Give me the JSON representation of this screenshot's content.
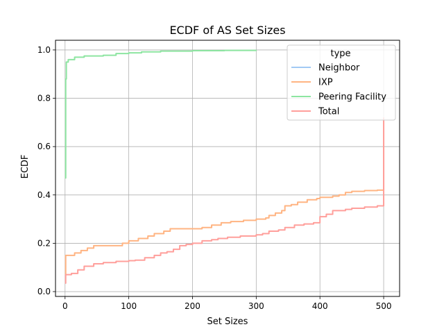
{
  "chart_data": {
    "type": "line",
    "title": "ECDF of AS Set Sizes",
    "xlabel": "Set Sizes",
    "ylabel": "ECDF",
    "xlim": [
      -15,
      525
    ],
    "ylim": [
      -0.02,
      1.04
    ],
    "xticks": [
      0,
      100,
      200,
      300,
      400,
      500
    ],
    "yticks": [
      0.0,
      0.2,
      0.4,
      0.6,
      0.8,
      1.0
    ],
    "xtick_labels": [
      "0",
      "100",
      "200",
      "300",
      "400",
      "500"
    ],
    "ytick_labels": [
      "0.0",
      "0.2",
      "0.4",
      "0.6",
      "0.8",
      "1.0"
    ],
    "grid": true,
    "legend": {
      "title": "type",
      "position": "top-right"
    },
    "series": [
      {
        "name": "Neighbor",
        "color": "#a1c9f4",
        "points": []
      },
      {
        "name": "IXP",
        "color": "#ffb482",
        "points": [
          [
            0,
            0.07
          ],
          [
            1,
            0.15
          ],
          [
            10,
            0.15
          ],
          [
            15,
            0.16
          ],
          [
            25,
            0.17
          ],
          [
            35,
            0.18
          ],
          [
            45,
            0.19
          ],
          [
            60,
            0.19
          ],
          [
            80,
            0.19
          ],
          [
            90,
            0.2
          ],
          [
            100,
            0.21
          ],
          [
            115,
            0.22
          ],
          [
            130,
            0.23
          ],
          [
            140,
            0.24
          ],
          [
            155,
            0.25
          ],
          [
            165,
            0.26
          ],
          [
            180,
            0.26
          ],
          [
            200,
            0.26
          ],
          [
            215,
            0.265
          ],
          [
            230,
            0.275
          ],
          [
            245,
            0.285
          ],
          [
            260,
            0.29
          ],
          [
            280,
            0.295
          ],
          [
            300,
            0.3
          ],
          [
            315,
            0.305
          ],
          [
            320,
            0.315
          ],
          [
            330,
            0.325
          ],
          [
            340,
            0.335
          ],
          [
            345,
            0.355
          ],
          [
            355,
            0.36
          ],
          [
            365,
            0.37
          ],
          [
            380,
            0.38
          ],
          [
            395,
            0.385
          ],
          [
            400,
            0.39
          ],
          [
            420,
            0.395
          ],
          [
            430,
            0.4
          ],
          [
            440,
            0.41
          ],
          [
            450,
            0.415
          ],
          [
            470,
            0.418
          ],
          [
            490,
            0.42
          ],
          [
            500,
            0.72
          ]
        ]
      },
      {
        "name": "Peering Facility",
        "color": "#8de5a1",
        "points": [
          [
            0,
            0.47
          ],
          [
            1,
            0.88
          ],
          [
            2,
            0.95
          ],
          [
            5,
            0.96
          ],
          [
            15,
            0.97
          ],
          [
            30,
            0.975
          ],
          [
            60,
            0.978
          ],
          [
            80,
            0.985
          ],
          [
            100,
            0.988
          ],
          [
            120,
            0.992
          ],
          [
            150,
            0.995
          ],
          [
            200,
            0.997
          ],
          [
            250,
            0.998
          ],
          [
            300,
            0.999
          ]
        ]
      },
      {
        "name": "Total",
        "color": "#ff9f9b",
        "points": [
          [
            0,
            0.035
          ],
          [
            1,
            0.07
          ],
          [
            10,
            0.075
          ],
          [
            20,
            0.09
          ],
          [
            30,
            0.105
          ],
          [
            45,
            0.115
          ],
          [
            60,
            0.12
          ],
          [
            80,
            0.125
          ],
          [
            100,
            0.128
          ],
          [
            110,
            0.13
          ],
          [
            125,
            0.14
          ],
          [
            140,
            0.15
          ],
          [
            150,
            0.16
          ],
          [
            160,
            0.165
          ],
          [
            170,
            0.175
          ],
          [
            180,
            0.19
          ],
          [
            190,
            0.195
          ],
          [
            200,
            0.2
          ],
          [
            215,
            0.21
          ],
          [
            230,
            0.215
          ],
          [
            240,
            0.22
          ],
          [
            255,
            0.225
          ],
          [
            275,
            0.23
          ],
          [
            300,
            0.235
          ],
          [
            310,
            0.24
          ],
          [
            320,
            0.25
          ],
          [
            335,
            0.255
          ],
          [
            345,
            0.265
          ],
          [
            360,
            0.275
          ],
          [
            375,
            0.28
          ],
          [
            390,
            0.285
          ],
          [
            400,
            0.31
          ],
          [
            410,
            0.32
          ],
          [
            420,
            0.335
          ],
          [
            440,
            0.34
          ],
          [
            450,
            0.345
          ],
          [
            470,
            0.35
          ],
          [
            490,
            0.355
          ],
          [
            500,
            0.36
          ],
          [
            500,
            0.72
          ]
        ]
      }
    ]
  }
}
